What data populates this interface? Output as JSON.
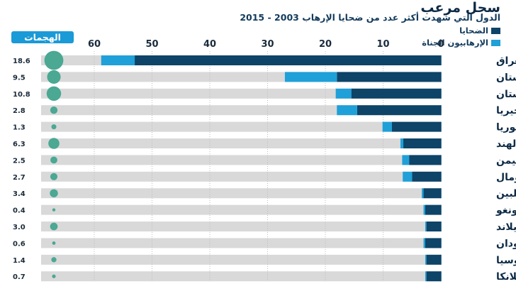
{
  "title": "سجل مرعب",
  "subtitle": "الدول التي شهدت أكثر عدد من ضحايا الإرهاب 2003 - 2015",
  "legend": {
    "victims": "الضحايا",
    "perpetrators": "الإرهابيون الجناة"
  },
  "attacks_header": "الهجمات",
  "colors": {
    "victims": "#0d4468",
    "perpetrators": "#1fa0d8",
    "track": "#d9d9d9",
    "bubble": "#4aa893"
  },
  "chart_data": {
    "type": "bar",
    "orientation": "horizontal",
    "title": "سجل مرعب",
    "subtitle": "الدول التي شهدت أكثر عدد من ضحايا الإرهاب 2003 - 2015",
    "xlim": [
      0,
      60
    ],
    "ticks": [
      0,
      10,
      20,
      30,
      40,
      50,
      60
    ],
    "grid": true,
    "categories": [
      "العراق",
      "أفغانستان",
      "باكستان",
      "نيجيريا",
      "سوريا",
      "الهند",
      "اليمن",
      "الصومال",
      "الفلبين",
      "الكونغو",
      "تايلاند",
      "السودان",
      "روسيا",
      "سريلانكا"
    ],
    "series": [
      {
        "name": "الضحايا",
        "values": [
          53,
          18,
          15.5,
          14.5,
          8.5,
          6.5,
          5.5,
          5,
          3,
          2.7,
          2.5,
          2.7,
          2.5,
          2.5
        ]
      },
      {
        "name": "الإرهابيون الجناة",
        "values": [
          5.8,
          9,
          2.7,
          3.5,
          1.6,
          0.5,
          1.2,
          1.6,
          0.3,
          0.3,
          0.2,
          0.3,
          0.2,
          0.2
        ]
      }
    ],
    "attacks": [
      "18.6",
      "9.5",
      "10.8",
      "2.8",
      "1.3",
      "6.3",
      "2.5",
      "2.7",
      "3.4",
      "0.4",
      "3.0",
      "0.6",
      "1.4",
      "0.7"
    ]
  }
}
